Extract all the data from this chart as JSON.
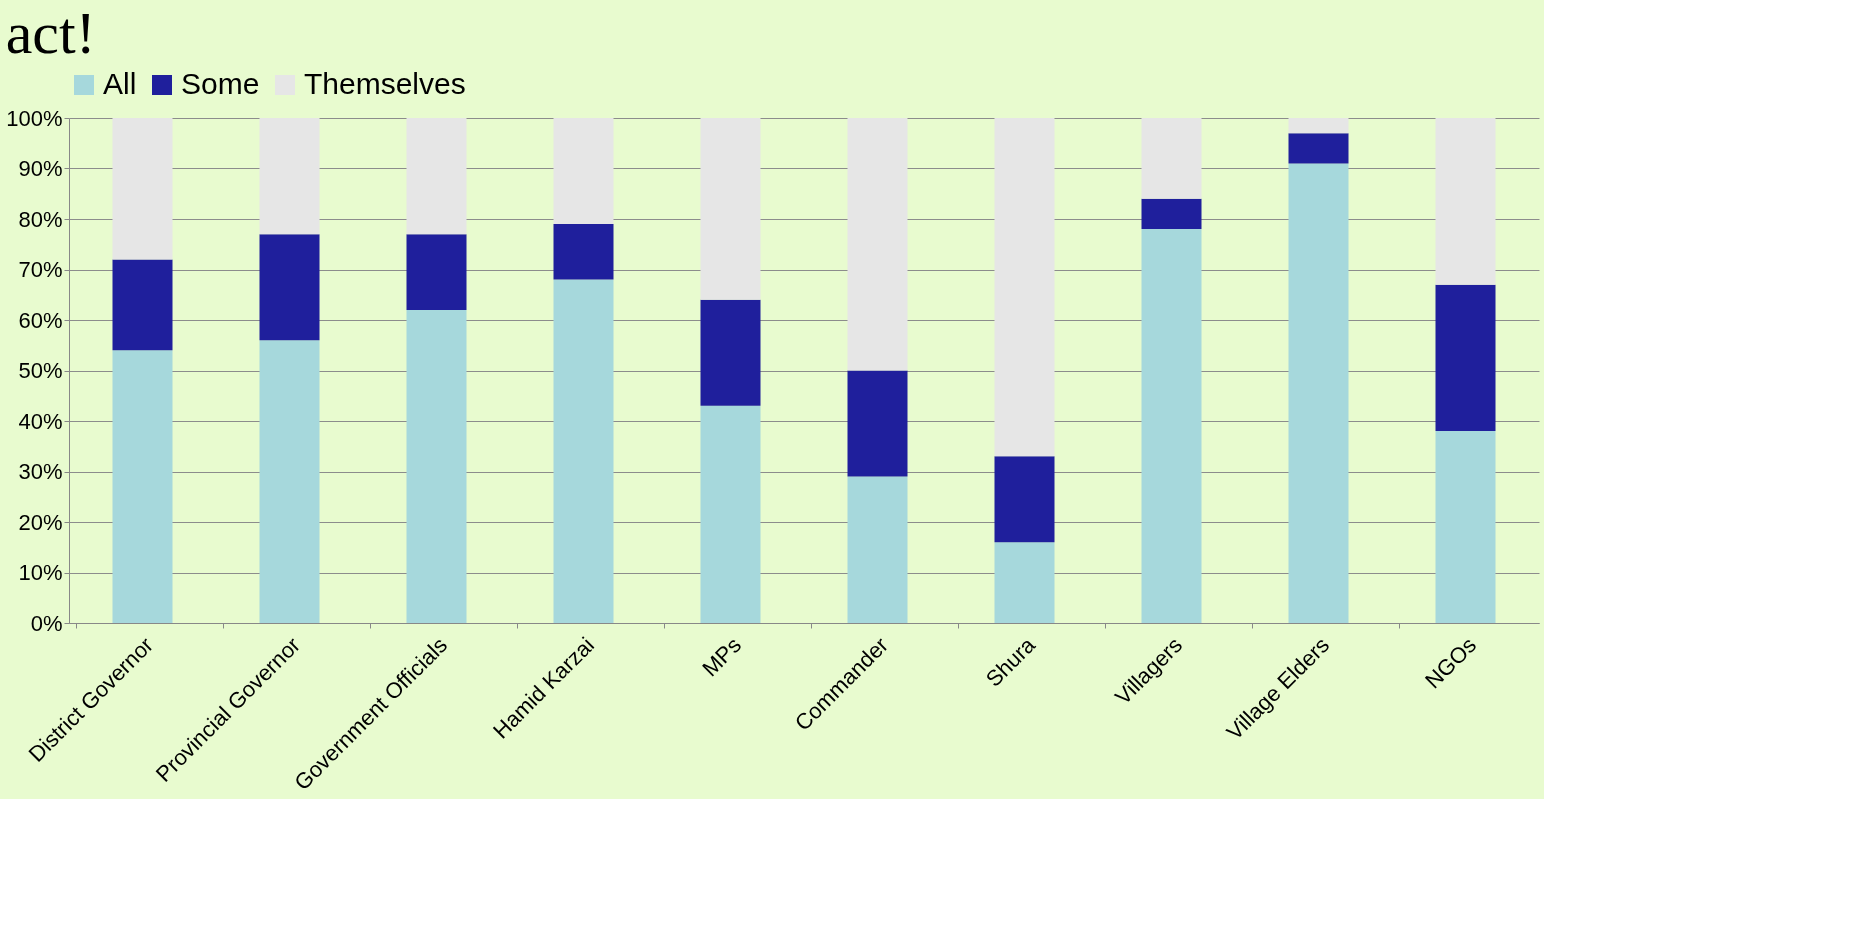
{
  "chart_data": {
    "type": "bar",
    "title": "act!",
    "stacked": true,
    "categories": [
      "District Governor",
      "Provincial Governor",
      "Government Officials",
      "Hamid Karzai",
      "MPs",
      "Commander",
      "Shura",
      "Villagers",
      "Village Elders",
      "NGOs"
    ],
    "series": [
      {
        "name": "All",
        "color": "#a6d8dc",
        "values": [
          54,
          56,
          62,
          68,
          43,
          29,
          16,
          78,
          91,
          38
        ]
      },
      {
        "name": "Some",
        "color": "#1f1f9c",
        "values": [
          18,
          21,
          15,
          11,
          21,
          21,
          17,
          6,
          6,
          29
        ]
      },
      {
        "name": "Themselves",
        "color": "#e6e6e6",
        "values": [
          28,
          23,
          23,
          21,
          36,
          50,
          67,
          16,
          3,
          33
        ]
      }
    ],
    "ylim": [
      0,
      100
    ],
    "yticks": [
      {
        "value": 0,
        "label": "0%"
      },
      {
        "value": 10,
        "label": "10%"
      },
      {
        "value": 20,
        "label": "20%"
      },
      {
        "value": 30,
        "label": "30%"
      },
      {
        "value": 40,
        "label": "40%"
      },
      {
        "value": 50,
        "label": "50%"
      },
      {
        "value": 60,
        "label": "60%"
      },
      {
        "value": 70,
        "label": "70%"
      },
      {
        "value": 80,
        "label": "80%"
      },
      {
        "value": 90,
        "label": "90%"
      },
      {
        "value": 100,
        "label": "100%"
      }
    ],
    "grid": "y",
    "legend": "top"
  }
}
